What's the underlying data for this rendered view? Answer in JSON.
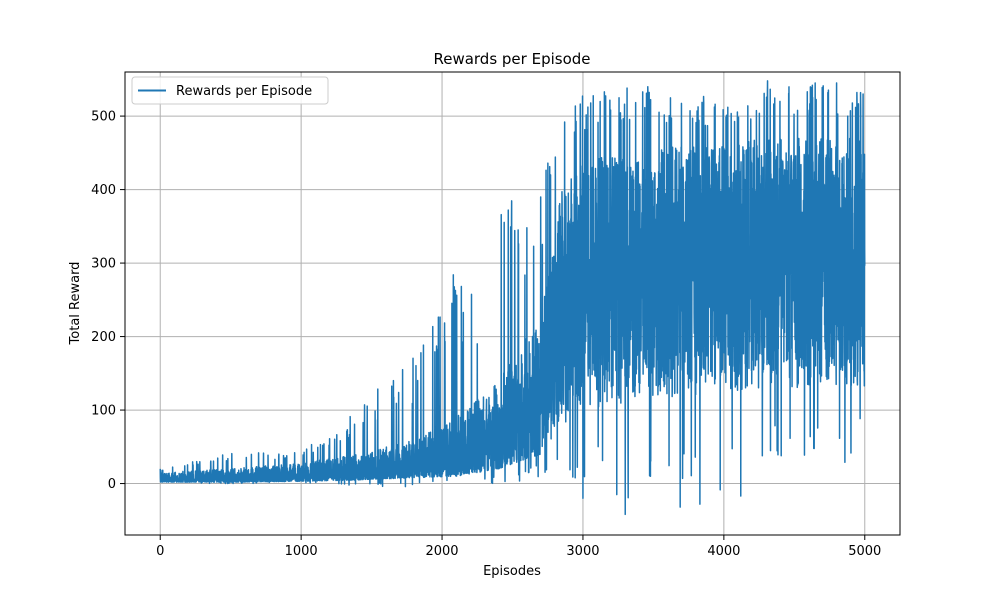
{
  "chart_data": {
    "type": "line",
    "title": "Rewards per Episode",
    "xlabel": "Episodes",
    "ylabel": "Total Reward",
    "xlim": [
      -250,
      5250
    ],
    "ylim": [
      -70,
      560
    ],
    "xticks": [
      0,
      1000,
      2000,
      3000,
      4000,
      5000
    ],
    "yticks": [
      0,
      100,
      200,
      300,
      400,
      500
    ],
    "grid": true,
    "legend": {
      "placement": "top-left",
      "entries": [
        "Rewards per Episode"
      ]
    },
    "series_color": "#1f77b4",
    "episodes": 5000,
    "envelope": [
      {
        "episode": 0,
        "low": 0,
        "typical_low": 2,
        "typical_high": 15,
        "high": 20
      },
      {
        "episode": 500,
        "low": 0,
        "typical_low": 2,
        "typical_high": 20,
        "high": 42
      },
      {
        "episode": 1000,
        "low": 0,
        "typical_low": 3,
        "typical_high": 28,
        "high": 45
      },
      {
        "episode": 1400,
        "low": -3,
        "typical_low": 5,
        "typical_high": 40,
        "high": 105
      },
      {
        "episode": 1800,
        "low": -5,
        "typical_low": 8,
        "typical_high": 60,
        "high": 178
      },
      {
        "episode": 2100,
        "low": 0,
        "typical_low": 10,
        "typical_high": 90,
        "high": 285
      },
      {
        "episode": 2400,
        "low": -5,
        "typical_low": 20,
        "typical_high": 140,
        "high": 372
      },
      {
        "episode": 2700,
        "low": 10,
        "typical_low": 40,
        "typical_high": 230,
        "high": 420
      },
      {
        "episode": 2850,
        "low": 20,
        "typical_low": 80,
        "typical_high": 400,
        "high": 492
      },
      {
        "episode": 3000,
        "low": -20,
        "typical_low": 100,
        "typical_high": 440,
        "high": 530
      },
      {
        "episode": 3300,
        "low": -40,
        "typical_low": 110,
        "typical_high": 450,
        "high": 540
      },
      {
        "episode": 3700,
        "low": -30,
        "typical_low": 120,
        "typical_high": 460,
        "high": 530
      },
      {
        "episode": 4000,
        "low": -10,
        "typical_low": 120,
        "typical_high": 460,
        "high": 525
      },
      {
        "episode": 4300,
        "low": 20,
        "typical_low": 130,
        "typical_high": 470,
        "high": 548
      },
      {
        "episode": 4700,
        "low": 20,
        "typical_low": 130,
        "typical_high": 470,
        "high": 545
      },
      {
        "episode": 5000,
        "low": 35,
        "typical_low": 130,
        "typical_high": 470,
        "high": 532
      }
    ],
    "notable_spikes": [
      {
        "episode": 1450,
        "value": 107
      },
      {
        "episode": 1720,
        "value": 155
      },
      {
        "episode": 1850,
        "value": 178
      },
      {
        "episode": 2080,
        "value": 284
      },
      {
        "episode": 2140,
        "value": 193
      },
      {
        "episode": 2250,
        "value": 190
      },
      {
        "episode": 2420,
        "value": 366
      },
      {
        "episode": 2470,
        "value": 372
      },
      {
        "episode": 2540,
        "value": 345
      },
      {
        "episode": 2700,
        "value": 390
      },
      {
        "episode": 2770,
        "value": 420
      },
      {
        "episode": 2870,
        "value": 492
      },
      {
        "episode": 3000,
        "value": -20
      },
      {
        "episode": 3240,
        "value": -15
      },
      {
        "episode": 3300,
        "value": -42
      },
      {
        "episode": 3460,
        "value": 540
      },
      {
        "episode": 3690,
        "value": -32
      },
      {
        "episode": 3830,
        "value": -28
      },
      {
        "episode": 4120,
        "value": -17
      },
      {
        "episode": 4310,
        "value": 548
      },
      {
        "episode": 4800,
        "value": 545
      },
      {
        "episode": 4970,
        "value": 532
      }
    ]
  }
}
